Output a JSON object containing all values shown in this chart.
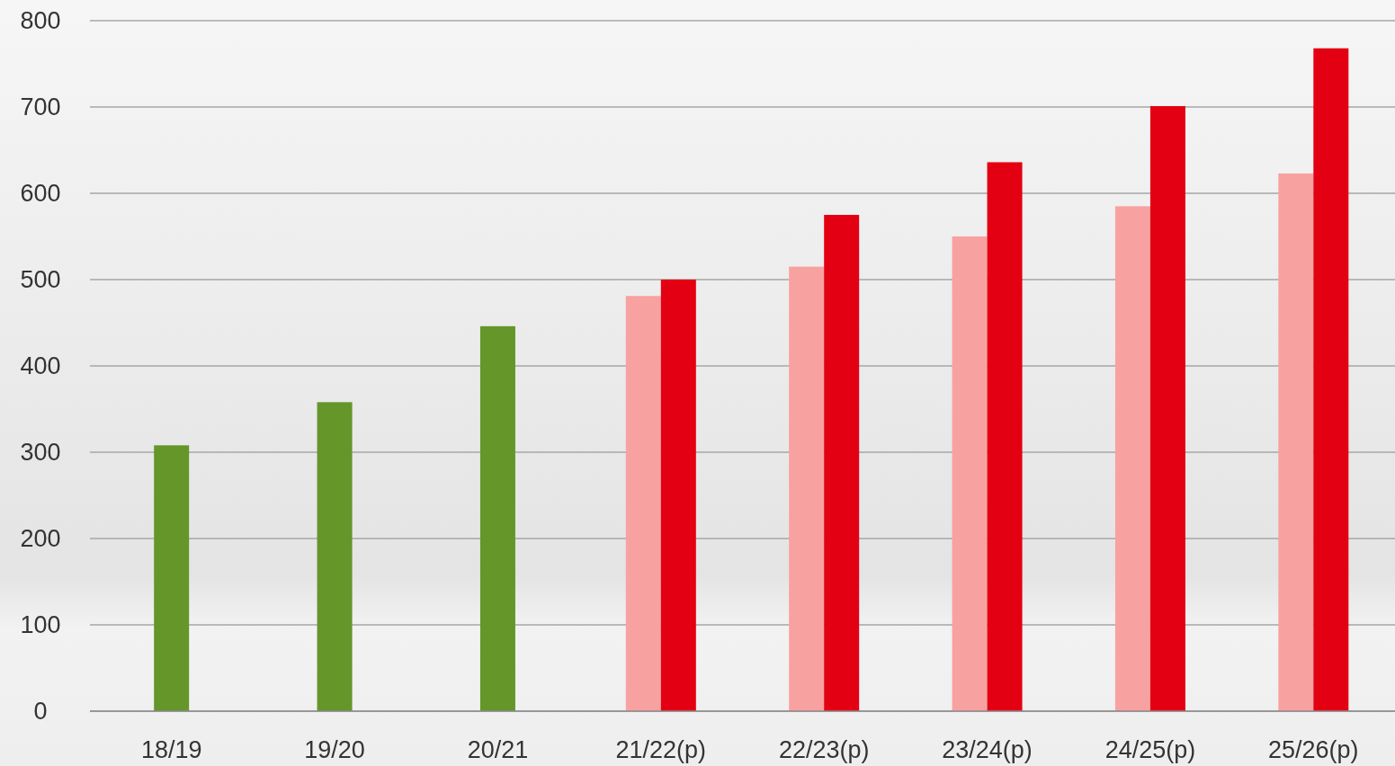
{
  "chart_data": {
    "type": "bar",
    "categories": [
      "18/19",
      "19/20",
      "20/21",
      "21/22(p)",
      "22/23(p)",
      "23/24(p)",
      "24/25(p)",
      "25/26(p)"
    ],
    "series": [
      {
        "color": "#64962a",
        "values": [
          308,
          358,
          446,
          null,
          null,
          null,
          null,
          null
        ]
      },
      {
        "color": "#f8a1a1",
        "values": [
          null,
          null,
          null,
          481,
          515,
          550,
          585,
          623
        ]
      },
      {
        "color": "#e30012",
        "values": [
          null,
          null,
          null,
          500,
          575,
          636,
          701,
          768
        ]
      }
    ],
    "ylim": [
      0,
      800
    ],
    "yticks": [
      0,
      100,
      200,
      300,
      400,
      500,
      600,
      700,
      800
    ],
    "grid": "y"
  }
}
